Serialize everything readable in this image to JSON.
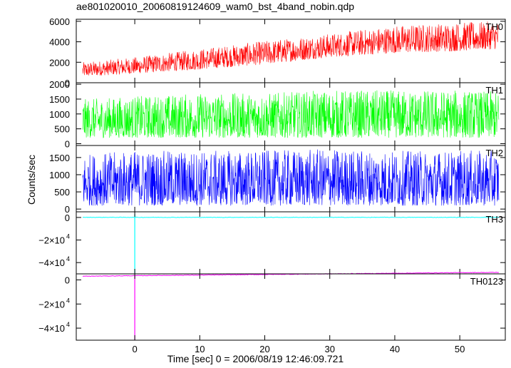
{
  "chart_data": {
    "type": "line",
    "title": "ae801020010_20060819124609_wam0_bst_4band_nobin.qdp",
    "xlabel": "Time [sec] 0 = 2006/08/19 12:46:09.721",
    "ylabel": "Counts/sec",
    "xlim": [
      -9,
      57
    ],
    "xticks": [
      0,
      10,
      20,
      30,
      40,
      50
    ],
    "grid": false,
    "panels": [
      {
        "name": "TH0",
        "color": "#ff0000",
        "ylim": [
          0,
          6200
        ],
        "yticks": [
          0,
          2000,
          4000,
          6000
        ],
        "ytick_labels": [
          "0",
          "2000",
          "4000",
          "6000"
        ],
        "series": {
          "x": [
            -8,
            0,
            10,
            20,
            30,
            40,
            50,
            56
          ],
          "low": [
            600,
            900,
            1300,
            1800,
            2500,
            2900,
            3100,
            3300
          ],
          "high": [
            2000,
            2500,
            3300,
            4100,
            4800,
            5600,
            5900,
            6000
          ]
        }
      },
      {
        "name": "TH1",
        "color": "#00ff00",
        "ylim": [
          -60,
          2050
        ],
        "yticks": [
          0,
          500,
          1000,
          1500,
          2000
        ],
        "ytick_labels": [
          "0",
          "500",
          "1000",
          "1500",
          "2000"
        ],
        "series": {
          "x": [
            -8,
            0,
            10,
            20,
            30,
            40,
            50,
            56
          ],
          "low": [
            200,
            200,
            200,
            200,
            200,
            200,
            200,
            200
          ],
          "high": [
            1500,
            1600,
            1700,
            1700,
            1800,
            1800,
            1800,
            1750
          ]
        }
      },
      {
        "name": "TH2",
        "color": "#0000ff",
        "ylim": [
          -80,
          1850
        ],
        "yticks": [
          0,
          500,
          1000,
          1500
        ],
        "ytick_labels": [
          "0",
          "500",
          "1000",
          "1500"
        ],
        "series": {
          "x": [
            -8,
            0,
            10,
            20,
            30,
            40,
            50,
            56
          ],
          "low": [
            100,
            100,
            100,
            100,
            100,
            100,
            100,
            100
          ],
          "high": [
            1600,
            1700,
            1700,
            1700,
            1750,
            1700,
            1700,
            1700
          ]
        }
      },
      {
        "name": "TH3",
        "color": "#00ffff",
        "ylim": [
          -50000,
          5000
        ],
        "yticks": [
          0,
          -20000,
          -40000
        ],
        "ytick_labels": [
          "0",
          "−2×10",
          "−4×10"
        ],
        "ytick_exps": [
          "",
          "4",
          "4"
        ],
        "series": {
          "x": [
            -8,
            0,
            10,
            20,
            30,
            40,
            50,
            56
          ],
          "y": [
            100,
            100,
            100,
            100,
            100,
            100,
            100,
            100
          ],
          "spike": {
            "x": 0,
            "ymin": -50000,
            "ymax": 3000
          }
        }
      },
      {
        "name": "TH0123",
        "color": "#ff00ff",
        "ylim": [
          -50000,
          5000
        ],
        "yticks": [
          0,
          -20000,
          -40000
        ],
        "ytick_labels": [
          "0",
          "−2×10",
          "−4×10"
        ],
        "ytick_exps": [
          "",
          "4",
          "4"
        ],
        "series": {
          "x": [
            -8,
            0,
            10,
            20,
            30,
            40,
            50,
            56
          ],
          "y": [
            3000,
            3500,
            4000,
            4500,
            5000,
            5500,
            6000,
            6200
          ],
          "spike": {
            "x": 0,
            "ymin": -50000,
            "ymax": 3500
          }
        }
      }
    ]
  }
}
